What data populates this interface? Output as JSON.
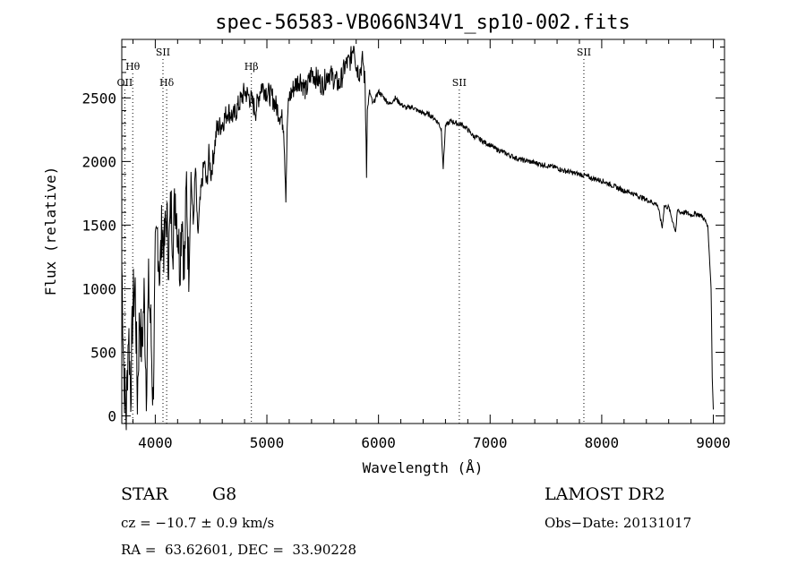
{
  "chart_data": {
    "type": "line",
    "title": "spec-56583-VB066N34V1_sp10-002.fits",
    "xlabel": "Wavelength (Å)",
    "ylabel": "Flux (relative)",
    "xlim": [
      3700,
      9100
    ],
    "ylim": [
      -60,
      2960
    ],
    "x_ticks": [
      4000,
      5000,
      6000,
      7000,
      8000,
      9000
    ],
    "y_ticks": [
      0,
      500,
      1000,
      1500,
      2000,
      2500
    ],
    "grid": false,
    "line_color": "#000000",
    "spectrum": {
      "x": [
        3700,
        3720,
        3740,
        3760,
        3780,
        3800,
        3820,
        3840,
        3860,
        3880,
        3900,
        3920,
        3940,
        3960,
        3980,
        4000,
        4020,
        4040,
        4060,
        4080,
        4100,
        4120,
        4140,
        4160,
        4180,
        4200,
        4220,
        4240,
        4260,
        4280,
        4300,
        4320,
        4340,
        4360,
        4380,
        4400,
        4420,
        4440,
        4460,
        4480,
        4500,
        4550,
        4600,
        4650,
        4700,
        4750,
        4800,
        4850,
        4900,
        4950,
        5000,
        5050,
        5100,
        5150,
        5170,
        5185,
        5200,
        5250,
        5300,
        5350,
        5400,
        5450,
        5500,
        5550,
        5600,
        5650,
        5700,
        5750,
        5780,
        5800,
        5830,
        5860,
        5880,
        5893,
        5900,
        5920,
        5950,
        6000,
        6050,
        6100,
        6150,
        6200,
        6250,
        6300,
        6350,
        6400,
        6450,
        6500,
        6540,
        6563,
        6580,
        6600,
        6650,
        6700,
        6750,
        6800,
        6850,
        6900,
        6950,
        7000,
        7050,
        7100,
        7150,
        7200,
        7250,
        7300,
        7350,
        7400,
        7450,
        7500,
        7550,
        7600,
        7650,
        7700,
        7750,
        7800,
        7850,
        7900,
        7950,
        8000,
        8050,
        8100,
        8150,
        8200,
        8250,
        8300,
        8350,
        8400,
        8450,
        8500,
        8542,
        8560,
        8600,
        8662,
        8680,
        8700,
        8750,
        8800,
        8850,
        8900,
        8950,
        8980,
        8990,
        9000
      ],
      "y": [
        1200,
        300,
        0,
        700,
        200,
        900,
        1000,
        150,
        800,
        500,
        950,
        250,
        1000,
        700,
        100,
        1200,
        1450,
        1100,
        1500,
        1300,
        1600,
        1250,
        1650,
        1400,
        1750,
        1500,
        1200,
        1650,
        1100,
        1850,
        1050,
        1900,
        1500,
        1950,
        1400,
        1650,
        1850,
        2000,
        1800,
        2050,
        1900,
        2250,
        2300,
        2400,
        2350,
        2450,
        2550,
        2500,
        2400,
        2600,
        2550,
        2500,
        2400,
        2300,
        1750,
        2350,
        2500,
        2600,
        2650,
        2550,
        2700,
        2650,
        2600,
        2700,
        2650,
        2600,
        2750,
        2800,
        2950,
        2750,
        2700,
        2800,
        2600,
        1950,
        2400,
        2550,
        2450,
        2550,
        2500,
        2450,
        2500,
        2450,
        2420,
        2430,
        2400,
        2380,
        2370,
        2340,
        2300,
        2250,
        1950,
        2280,
        2320,
        2300,
        2290,
        2250,
        2200,
        2180,
        2150,
        2130,
        2100,
        2080,
        2060,
        2040,
        2020,
        2010,
        2000,
        1990,
        1980,
        1970,
        1960,
        1950,
        1930,
        1920,
        1910,
        1900,
        1890,
        1870,
        1860,
        1850,
        1830,
        1810,
        1790,
        1770,
        1760,
        1740,
        1720,
        1700,
        1680,
        1660,
        1480,
        1650,
        1640,
        1450,
        1620,
        1600,
        1600,
        1580,
        1590,
        1570,
        1500,
        1000,
        300,
        50
      ]
    },
    "line_markers": [
      {
        "label": "OII",
        "x": 3727,
        "label_tier": "low"
      },
      {
        "label": "Hθ",
        "x": 3798,
        "label_tier": "high"
      },
      {
        "label": "SII",
        "x": 4069,
        "label_tier": "top"
      },
      {
        "label": "Hδ",
        "x": 4102,
        "label_tier": "low"
      },
      {
        "label": "Hβ",
        "x": 4861,
        "label_tier": "high"
      },
      {
        "label": "SII",
        "x": 6724,
        "label_tier": "low"
      },
      {
        "label": "SII",
        "x": 7840,
        "label_tier": "top"
      }
    ]
  },
  "footer": {
    "class_label": "STAR",
    "subclass": "G8",
    "survey": "LAMOST DR2",
    "cz": "cz = −10.7 ± 0.9 km/s",
    "obs_date": "Obs−Date: 20131017",
    "coords": "RA =  63.62601, DEC =  33.90228"
  }
}
